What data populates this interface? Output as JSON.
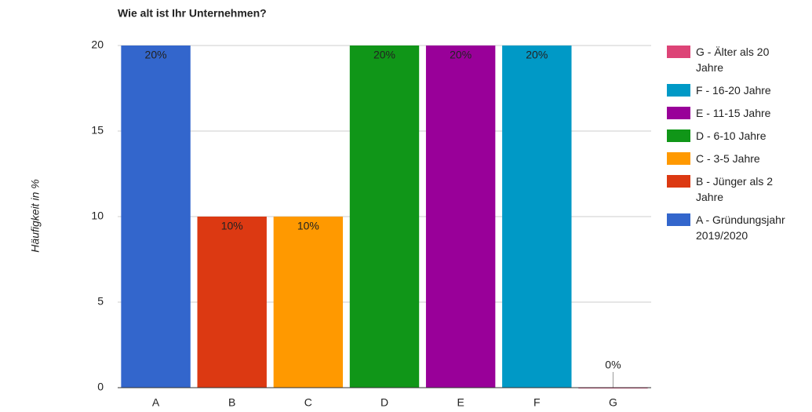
{
  "chart_data": {
    "type": "bar",
    "title": "Wie alt ist Ihr Unternehmen?",
    "y_label": "Häufigkeit in %",
    "categories": [
      "A",
      "B",
      "C",
      "D",
      "E",
      "F",
      "G"
    ],
    "series": [
      {
        "name": "A - Gründungsjahr 2019/2020",
        "color": "#3366cc",
        "values": [
          20,
          null,
          null,
          null,
          null,
          null,
          null
        ],
        "value_labels": [
          "20%",
          null,
          null,
          null,
          null,
          null,
          null
        ]
      },
      {
        "name": "B - Jünger als 2 Jahre",
        "color": "#dc3912",
        "values": [
          null,
          10,
          null,
          null,
          null,
          null,
          null
        ],
        "value_labels": [
          null,
          "10%",
          null,
          null,
          null,
          null,
          null
        ]
      },
      {
        "name": "C - 3-5 Jahre",
        "color": "#ff9900",
        "values": [
          null,
          null,
          10,
          null,
          null,
          null,
          null
        ],
        "value_labels": [
          null,
          null,
          "10%",
          null,
          null,
          null,
          null
        ]
      },
      {
        "name": "D - 6-10 Jahre",
        "color": "#109618",
        "values": [
          null,
          null,
          null,
          20,
          null,
          null,
          null
        ],
        "value_labels": [
          null,
          null,
          null,
          "20%",
          null,
          null,
          null
        ]
      },
      {
        "name": "E - 11-15 Jahre",
        "color": "#990099",
        "values": [
          null,
          null,
          null,
          null,
          20,
          null,
          null
        ],
        "value_labels": [
          null,
          null,
          null,
          null,
          "20%",
          null,
          null
        ]
      },
      {
        "name": "F - 16-20 Jahre",
        "color": "#0099c6",
        "values": [
          null,
          null,
          null,
          null,
          null,
          20,
          null
        ],
        "value_labels": [
          null,
          null,
          null,
          null,
          null,
          "20%",
          null
        ]
      },
      {
        "name": "G - Älter als 20 Jahre",
        "color": "#dd4477",
        "values": [
          null,
          null,
          null,
          null,
          null,
          null,
          0
        ],
        "value_labels": [
          null,
          null,
          null,
          null,
          null,
          null,
          "0%"
        ]
      }
    ],
    "ylim": [
      0,
      20
    ],
    "yticks": [
      0,
      5,
      10,
      15,
      20
    ],
    "grid": true,
    "legend": "right"
  }
}
